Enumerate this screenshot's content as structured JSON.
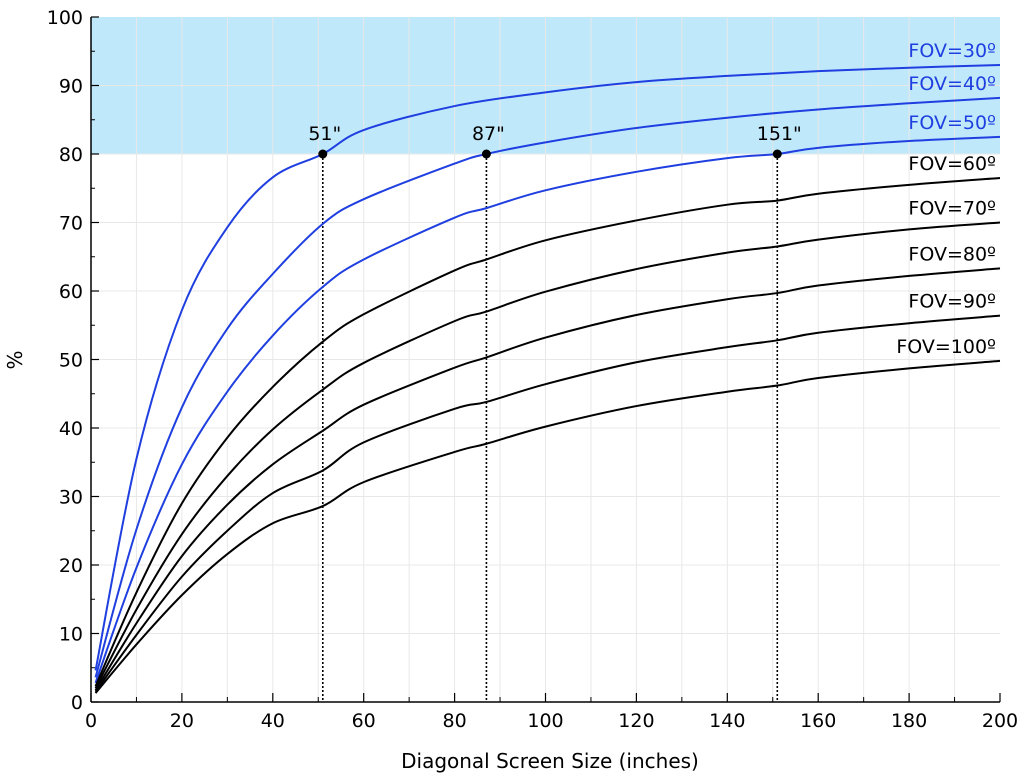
{
  "chart_data": {
    "type": "line",
    "title": "",
    "xlabel": "Diagonal Screen Size (inches)",
    "ylabel": "%",
    "xlim": [
      0,
      200
    ],
    "ylim": [
      0,
      100
    ],
    "x_ticks": [
      0,
      20,
      40,
      60,
      80,
      100,
      120,
      140,
      160,
      180,
      200
    ],
    "y_ticks": [
      0,
      10,
      20,
      30,
      40,
      50,
      60,
      70,
      80,
      90,
      100
    ],
    "grid": true,
    "shaded_band": {
      "y_from": 80,
      "y_to": 100,
      "color": "#bfe9fb"
    },
    "colors": {
      "highlight": "#1f3fe0",
      "default": "#000000"
    },
    "series": [
      {
        "name": "FOV=30º",
        "label": "FOV=30º",
        "fov": 30,
        "highlight": true,
        "x": [
          1,
          10,
          20,
          30,
          40,
          51,
          60,
          80,
          100,
          120,
          140,
          160,
          180,
          200
        ],
        "y": [
          4.6,
          35.5,
          57.2,
          69.3,
          76.6,
          80.0,
          83.5,
          87.0,
          89.0,
          90.5,
          91.4,
          92.1,
          92.6,
          93.0
        ]
      },
      {
        "name": "FOV=40º",
        "label": "FOV=40º",
        "fov": 40,
        "highlight": true,
        "x": [
          1,
          10,
          20,
          30,
          40,
          51,
          60,
          80,
          87,
          100,
          120,
          140,
          160,
          180,
          200
        ],
        "y": [
          3.6,
          25.2,
          43.0,
          54.5,
          62.5,
          69.8,
          73.4,
          78.6,
          80.0,
          81.7,
          83.8,
          85.3,
          86.5,
          87.4,
          88.2
        ]
      },
      {
        "name": "FOV=50º",
        "label": "FOV=50º",
        "fov": 50,
        "highlight": true,
        "x": [
          1,
          10,
          20,
          30,
          40,
          51,
          60,
          80,
          87,
          100,
          120,
          140,
          151,
          160,
          180,
          200
        ],
        "y": [
          2.8,
          19.6,
          34.7,
          45.3,
          53.5,
          60.6,
          64.6,
          70.7,
          72.1,
          74.7,
          77.4,
          79.4,
          80.0,
          80.9,
          81.9,
          82.5
        ]
      },
      {
        "name": "FOV=60º",
        "label": "FOV=60º",
        "fov": 60,
        "highlight": false,
        "x": [
          1,
          10,
          20,
          30,
          40,
          51,
          60,
          80,
          87,
          100,
          120,
          140,
          151,
          160,
          180,
          200
        ],
        "y": [
          2.3,
          16.0,
          29.0,
          38.6,
          46.0,
          52.6,
          56.6,
          63.0,
          64.6,
          67.4,
          70.3,
          72.6,
          73.2,
          74.2,
          75.5,
          76.5
        ]
      },
      {
        "name": "FOV=70º",
        "label": "FOV=70º",
        "fov": 70,
        "highlight": false,
        "x": [
          1,
          10,
          20,
          30,
          40,
          51,
          60,
          80,
          87,
          100,
          120,
          140,
          151,
          160,
          180,
          200
        ],
        "y": [
          2.0,
          13.5,
          24.5,
          33.0,
          39.8,
          45.6,
          49.5,
          55.6,
          57.0,
          59.9,
          63.2,
          65.6,
          66.5,
          67.5,
          69.0,
          70.0
        ]
      },
      {
        "name": "FOV=80º",
        "label": "FOV=80º",
        "fov": 80,
        "highlight": false,
        "x": [
          1,
          10,
          20,
          30,
          40,
          51,
          60,
          80,
          87,
          100,
          120,
          140,
          151,
          160,
          180,
          200
        ],
        "y": [
          1.7,
          11.5,
          21.3,
          28.8,
          34.7,
          39.6,
          43.4,
          48.8,
          50.3,
          53.2,
          56.5,
          58.8,
          59.7,
          60.8,
          62.2,
          63.3
        ]
      },
      {
        "name": "FOV=90º",
        "label": "FOV=90º",
        "fov": 90,
        "highlight": false,
        "x": [
          1,
          10,
          20,
          30,
          40,
          51,
          60,
          80,
          87,
          100,
          120,
          140,
          151,
          160,
          180,
          200
        ],
        "y": [
          1.5,
          9.8,
          18.3,
          25.0,
          30.5,
          33.8,
          37.9,
          42.8,
          43.8,
          46.4,
          49.6,
          51.8,
          52.8,
          53.9,
          55.3,
          56.4
        ]
      },
      {
        "name": "FOV=100º",
        "label": "FOV=100º",
        "fov": 100,
        "highlight": false,
        "x": [
          1,
          10,
          20,
          30,
          40,
          51,
          60,
          80,
          87,
          100,
          120,
          140,
          151,
          160,
          180,
          200
        ],
        "y": [
          1.3,
          8.4,
          15.6,
          21.6,
          26.1,
          28.6,
          32.1,
          36.5,
          37.7,
          40.2,
          43.2,
          45.3,
          46.2,
          47.3,
          48.7,
          49.8
        ]
      }
    ],
    "markers": [
      {
        "x": 51,
        "y": 80,
        "label": "51\""
      },
      {
        "x": 87,
        "y": 80,
        "label": "87\""
      },
      {
        "x": 151,
        "y": 80,
        "label": "151\""
      }
    ]
  }
}
